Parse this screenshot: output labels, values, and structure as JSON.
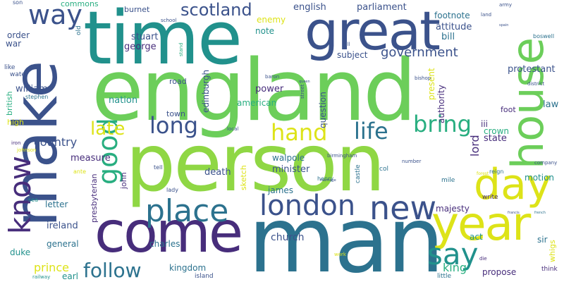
{
  "palette": {
    "light_green": "#6cce5a",
    "lime": "#8fd744",
    "yellow": "#dde318",
    "teal": "#21918c",
    "blue": "#3b528b",
    "cyan_blue": "#2c728e",
    "green_teal": "#28ae80",
    "purple": "#440154",
    "indigo": "#472d7b"
  },
  "words": [
    "person",
    "man",
    "england",
    "time",
    "make",
    "great",
    "come",
    "house",
    "year",
    "day",
    "place",
    "london",
    "new",
    "know",
    "say",
    "good",
    "life",
    "bring",
    "hand",
    "long",
    "late",
    "follow",
    "way",
    "scotland",
    "government",
    "church",
    "king",
    "country",
    "prince",
    "lord",
    "english",
    "parliament",
    "footnote",
    "stuart",
    "george",
    "bill",
    "attitude",
    "state",
    "protestant",
    "law",
    "crown",
    "iii",
    "minister",
    "death",
    "james",
    "walpole",
    "william",
    "power",
    "american",
    "nation",
    "measure",
    "ireland",
    "letter",
    "general",
    "charles",
    "kingdom",
    "majesty",
    "sir",
    "duke",
    "act",
    "propose",
    "earl",
    "motion",
    "question",
    "authority",
    "present",
    "edinburgh",
    "subject",
    "enemy",
    "note",
    "order",
    "war",
    "commons",
    "burnet",
    "old",
    "like",
    "water",
    "british",
    "high",
    "stephen",
    "road",
    "town",
    "john",
    "sketch",
    "presbyterian",
    "foot",
    "whigs",
    "think",
    "island",
    "little",
    "castle",
    "col",
    "henry",
    "mile",
    "write",
    "reign",
    "company",
    "tell",
    "lady",
    "ante",
    "johnson",
    "iron",
    "sea",
    "railway",
    "son",
    "army",
    "land",
    "boswell",
    "school",
    "stand",
    "hill",
    "street",
    "bishop",
    "district",
    "baron",
    "local",
    "birmingham",
    "number",
    "marriage",
    "work",
    "die",
    "forest",
    "french",
    "francis",
    "spain",
    "queen"
  ]
}
